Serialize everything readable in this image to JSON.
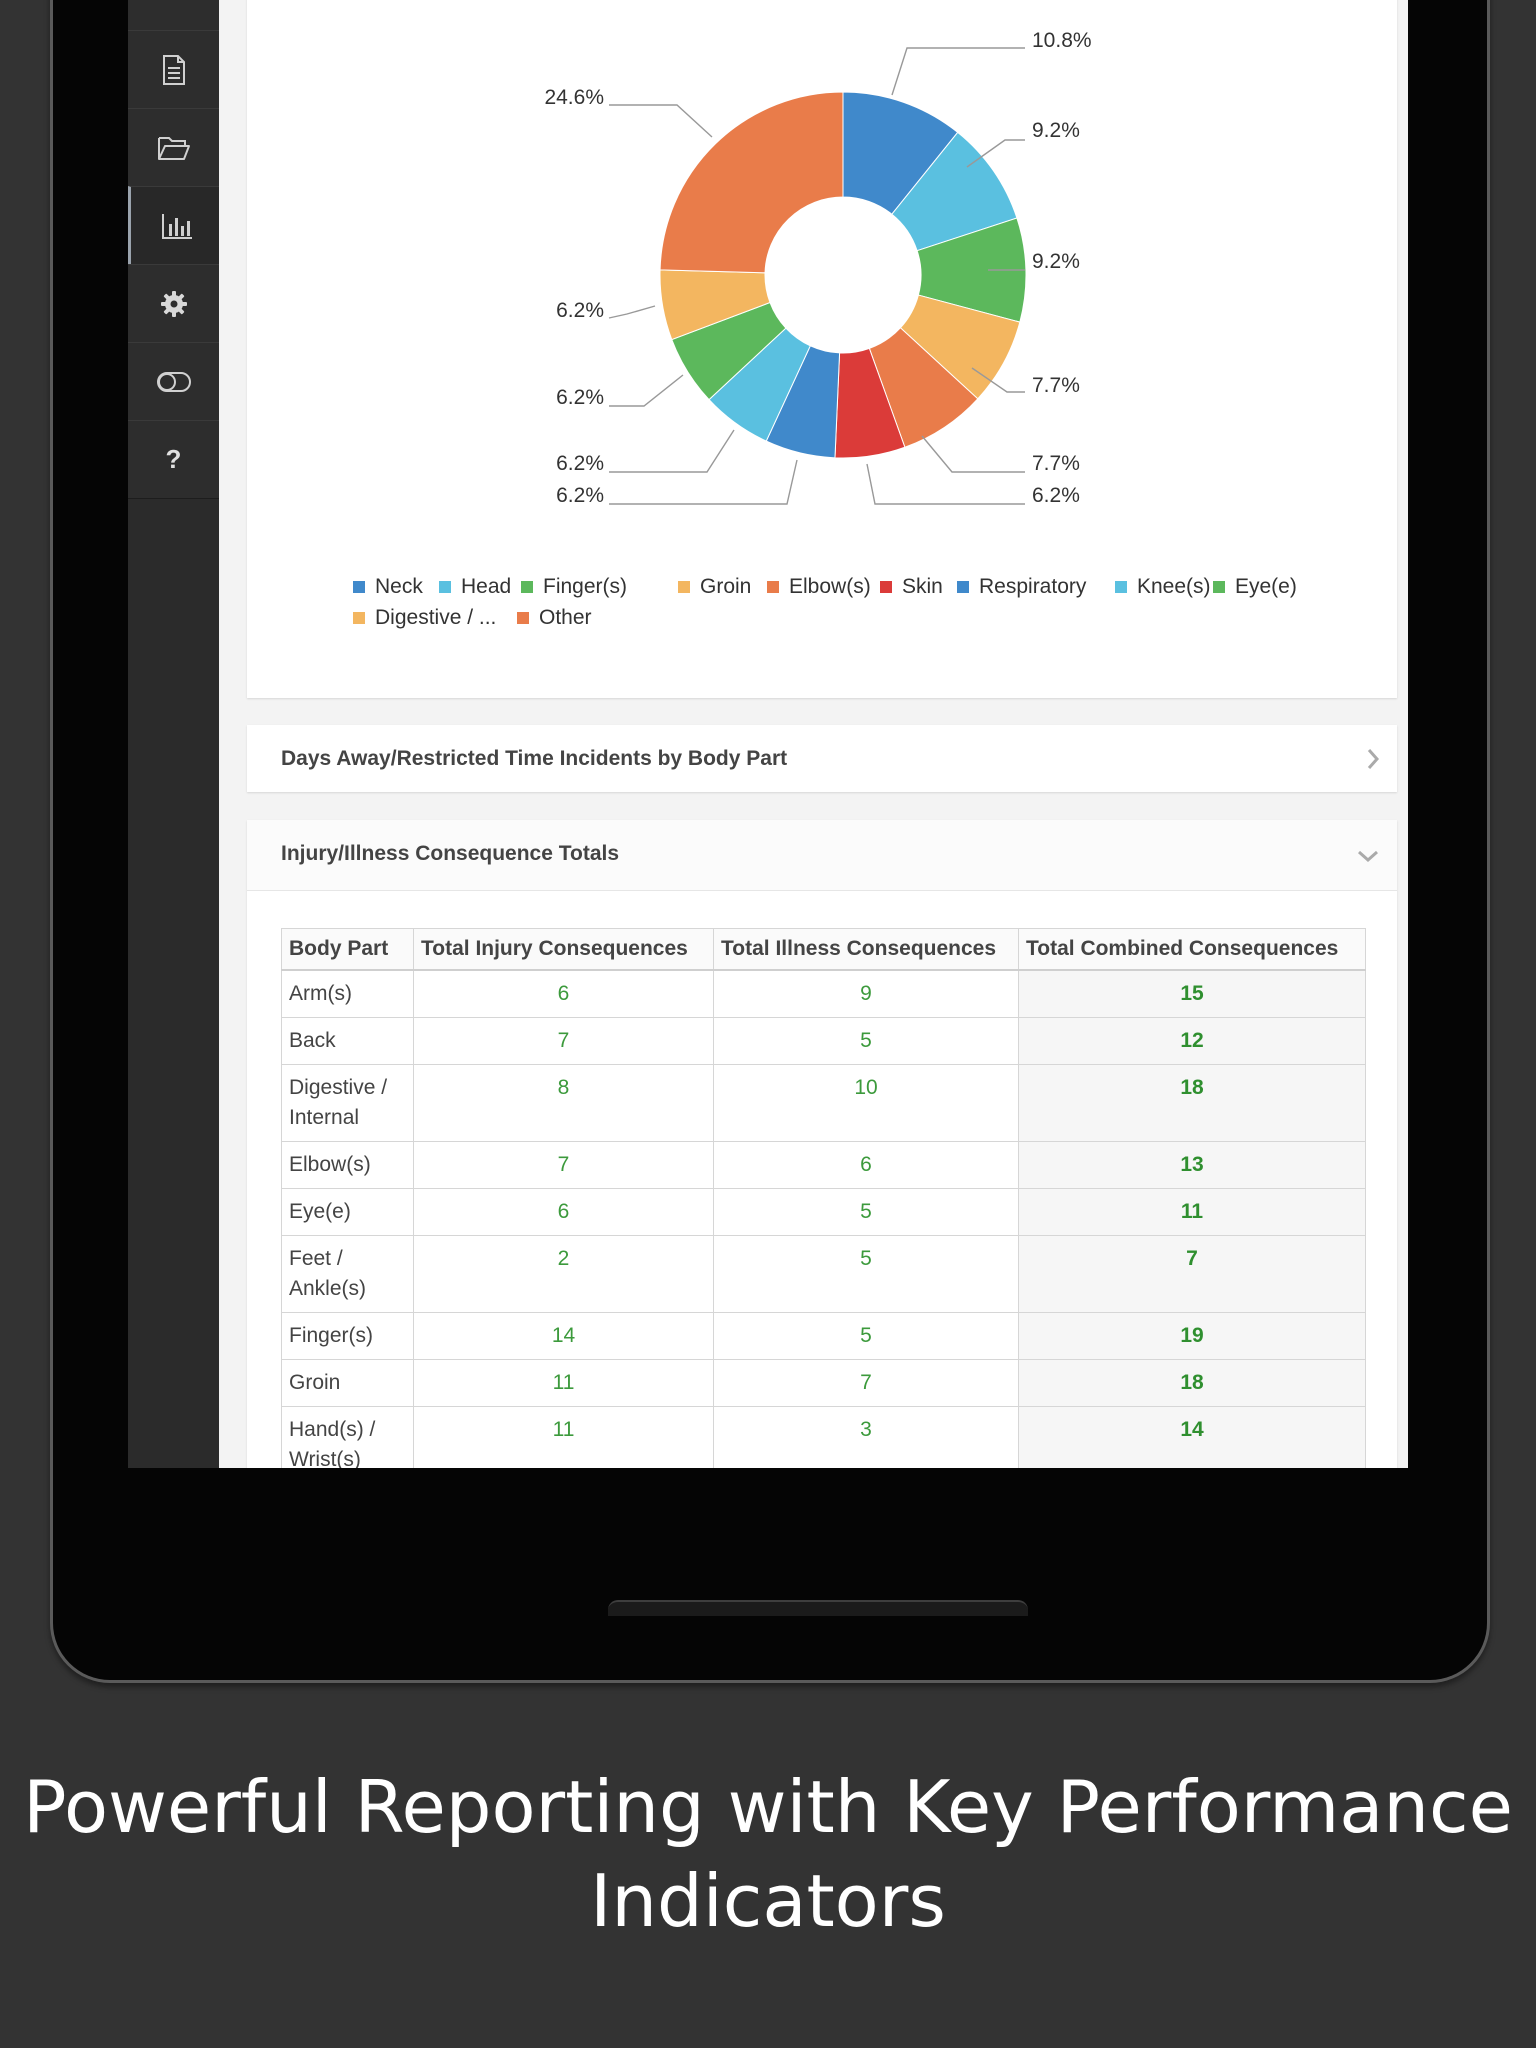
{
  "sidebar": {
    "items": [
      {
        "icon": "document-icon"
      },
      {
        "icon": "folder-open-icon"
      },
      {
        "icon": "bar-chart-icon",
        "active": true
      },
      {
        "icon": "gear-icon"
      },
      {
        "icon": "toggle-icon"
      },
      {
        "icon": "help-icon",
        "label": "?"
      }
    ]
  },
  "chart_data": {
    "type": "pie",
    "donut": true,
    "categories": [
      "Neck",
      "Head",
      "Finger(s)",
      "Groin",
      "Elbow(s)",
      "Skin",
      "Respiratory",
      "Knee(s)",
      "Eye(e)",
      "Digestive / ...",
      "Other"
    ],
    "values": [
      10.8,
      9.2,
      9.2,
      7.7,
      7.7,
      6.2,
      6.2,
      6.2,
      6.2,
      6.2,
      24.6
    ],
    "labels": [
      "10.8%",
      "9.2%",
      "9.2%",
      "7.7%",
      "7.7%",
      "6.2%",
      "6.2%",
      "6.2%",
      "6.2%",
      "6.2%",
      "24.6%"
    ],
    "colors": [
      "#4089cb",
      "#5ac0e0",
      "#5cb85c",
      "#f3b660",
      "#e97c4a",
      "#db3b39",
      "#4089cb",
      "#5ac0e0",
      "#5cb85c",
      "#f3b660",
      "#e97c4a"
    ],
    "legend_position": "bottom"
  },
  "panels": {
    "days_away_title": "Days Away/Restricted Time Incidents by Body Part",
    "consequence_title": "Injury/Illness Consequence Totals"
  },
  "table": {
    "headers": [
      "Body Part",
      "Total Injury Consequences",
      "Total Illness Consequences",
      "Total Combined Consequences"
    ],
    "rows": [
      {
        "part": "Arm(s)",
        "injury": "6",
        "illness": "9",
        "total": "15"
      },
      {
        "part": "Back",
        "injury": "7",
        "illness": "5",
        "total": "12"
      },
      {
        "part": "Digestive / Internal",
        "injury": "8",
        "illness": "10",
        "total": "18"
      },
      {
        "part": "Elbow(s)",
        "injury": "7",
        "illness": "6",
        "total": "13"
      },
      {
        "part": "Eye(e)",
        "injury": "6",
        "illness": "5",
        "total": "11"
      },
      {
        "part": "Feet / Ankle(s)",
        "injury": "2",
        "illness": "5",
        "total": "7"
      },
      {
        "part": "Finger(s)",
        "injury": "14",
        "illness": "5",
        "total": "19"
      },
      {
        "part": "Groin",
        "injury": "11",
        "illness": "7",
        "total": "18"
      },
      {
        "part": "Hand(s) / Wrist(s)",
        "injury": "11",
        "illness": "3",
        "total": "14"
      }
    ]
  },
  "caption": "Powerful Reporting with Key Performance Indicators"
}
